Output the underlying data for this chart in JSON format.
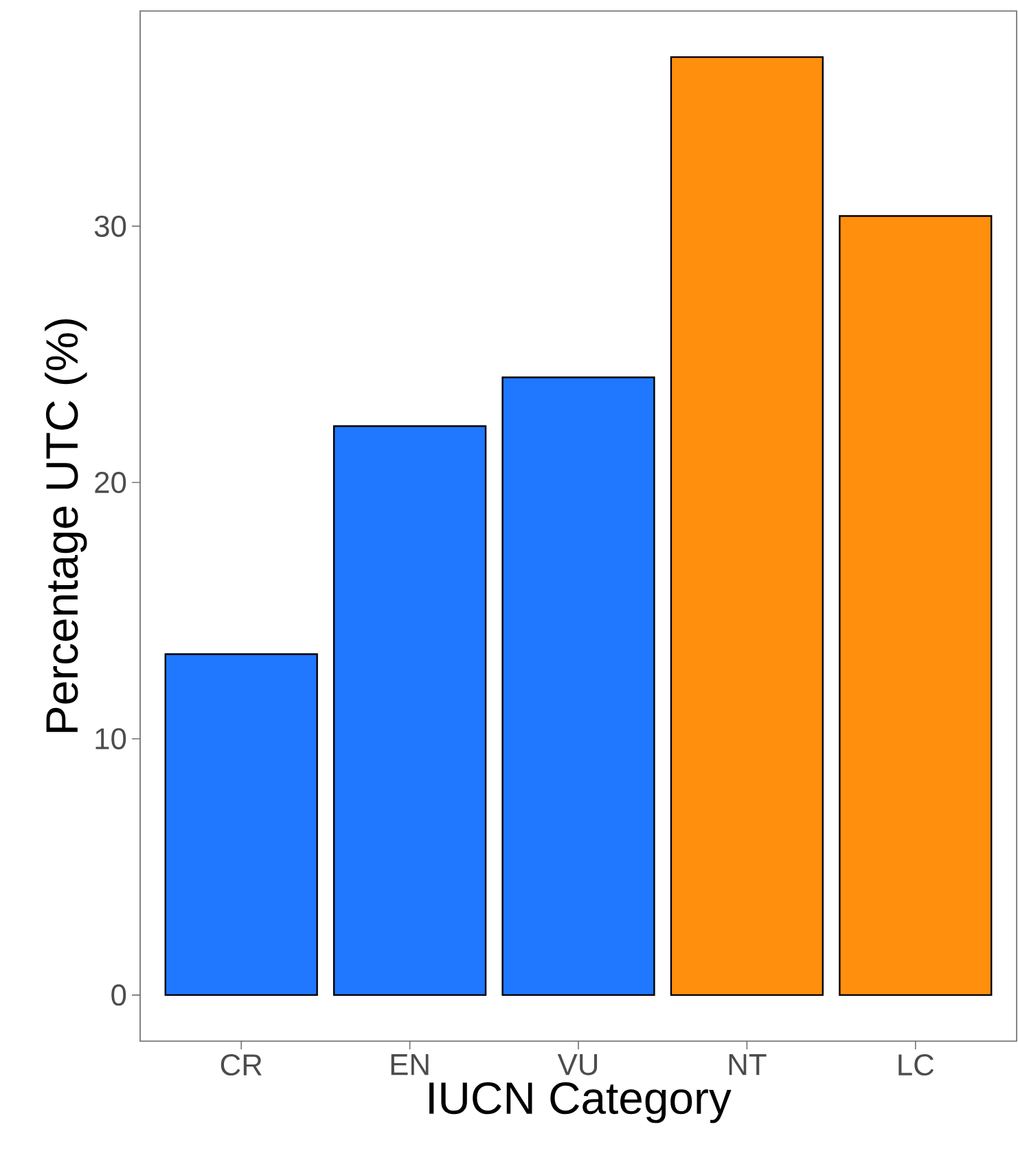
{
  "chart_data": {
    "type": "bar",
    "xlabel": "IUCN Category",
    "ylabel": "Percentage UTC (%)",
    "categories": [
      "CR",
      "EN",
      "VU",
      "NT",
      "LC"
    ],
    "values": [
      13.3,
      22.2,
      24.1,
      36.6,
      30.4
    ],
    "colors": [
      "#1f78ff",
      "#1f78ff",
      "#1f78ff",
      "#ff8f0d",
      "#ff8f0d"
    ],
    "ylim": [
      -1.8,
      38.4
    ],
    "yticks": [
      0,
      10,
      20,
      30
    ]
  }
}
